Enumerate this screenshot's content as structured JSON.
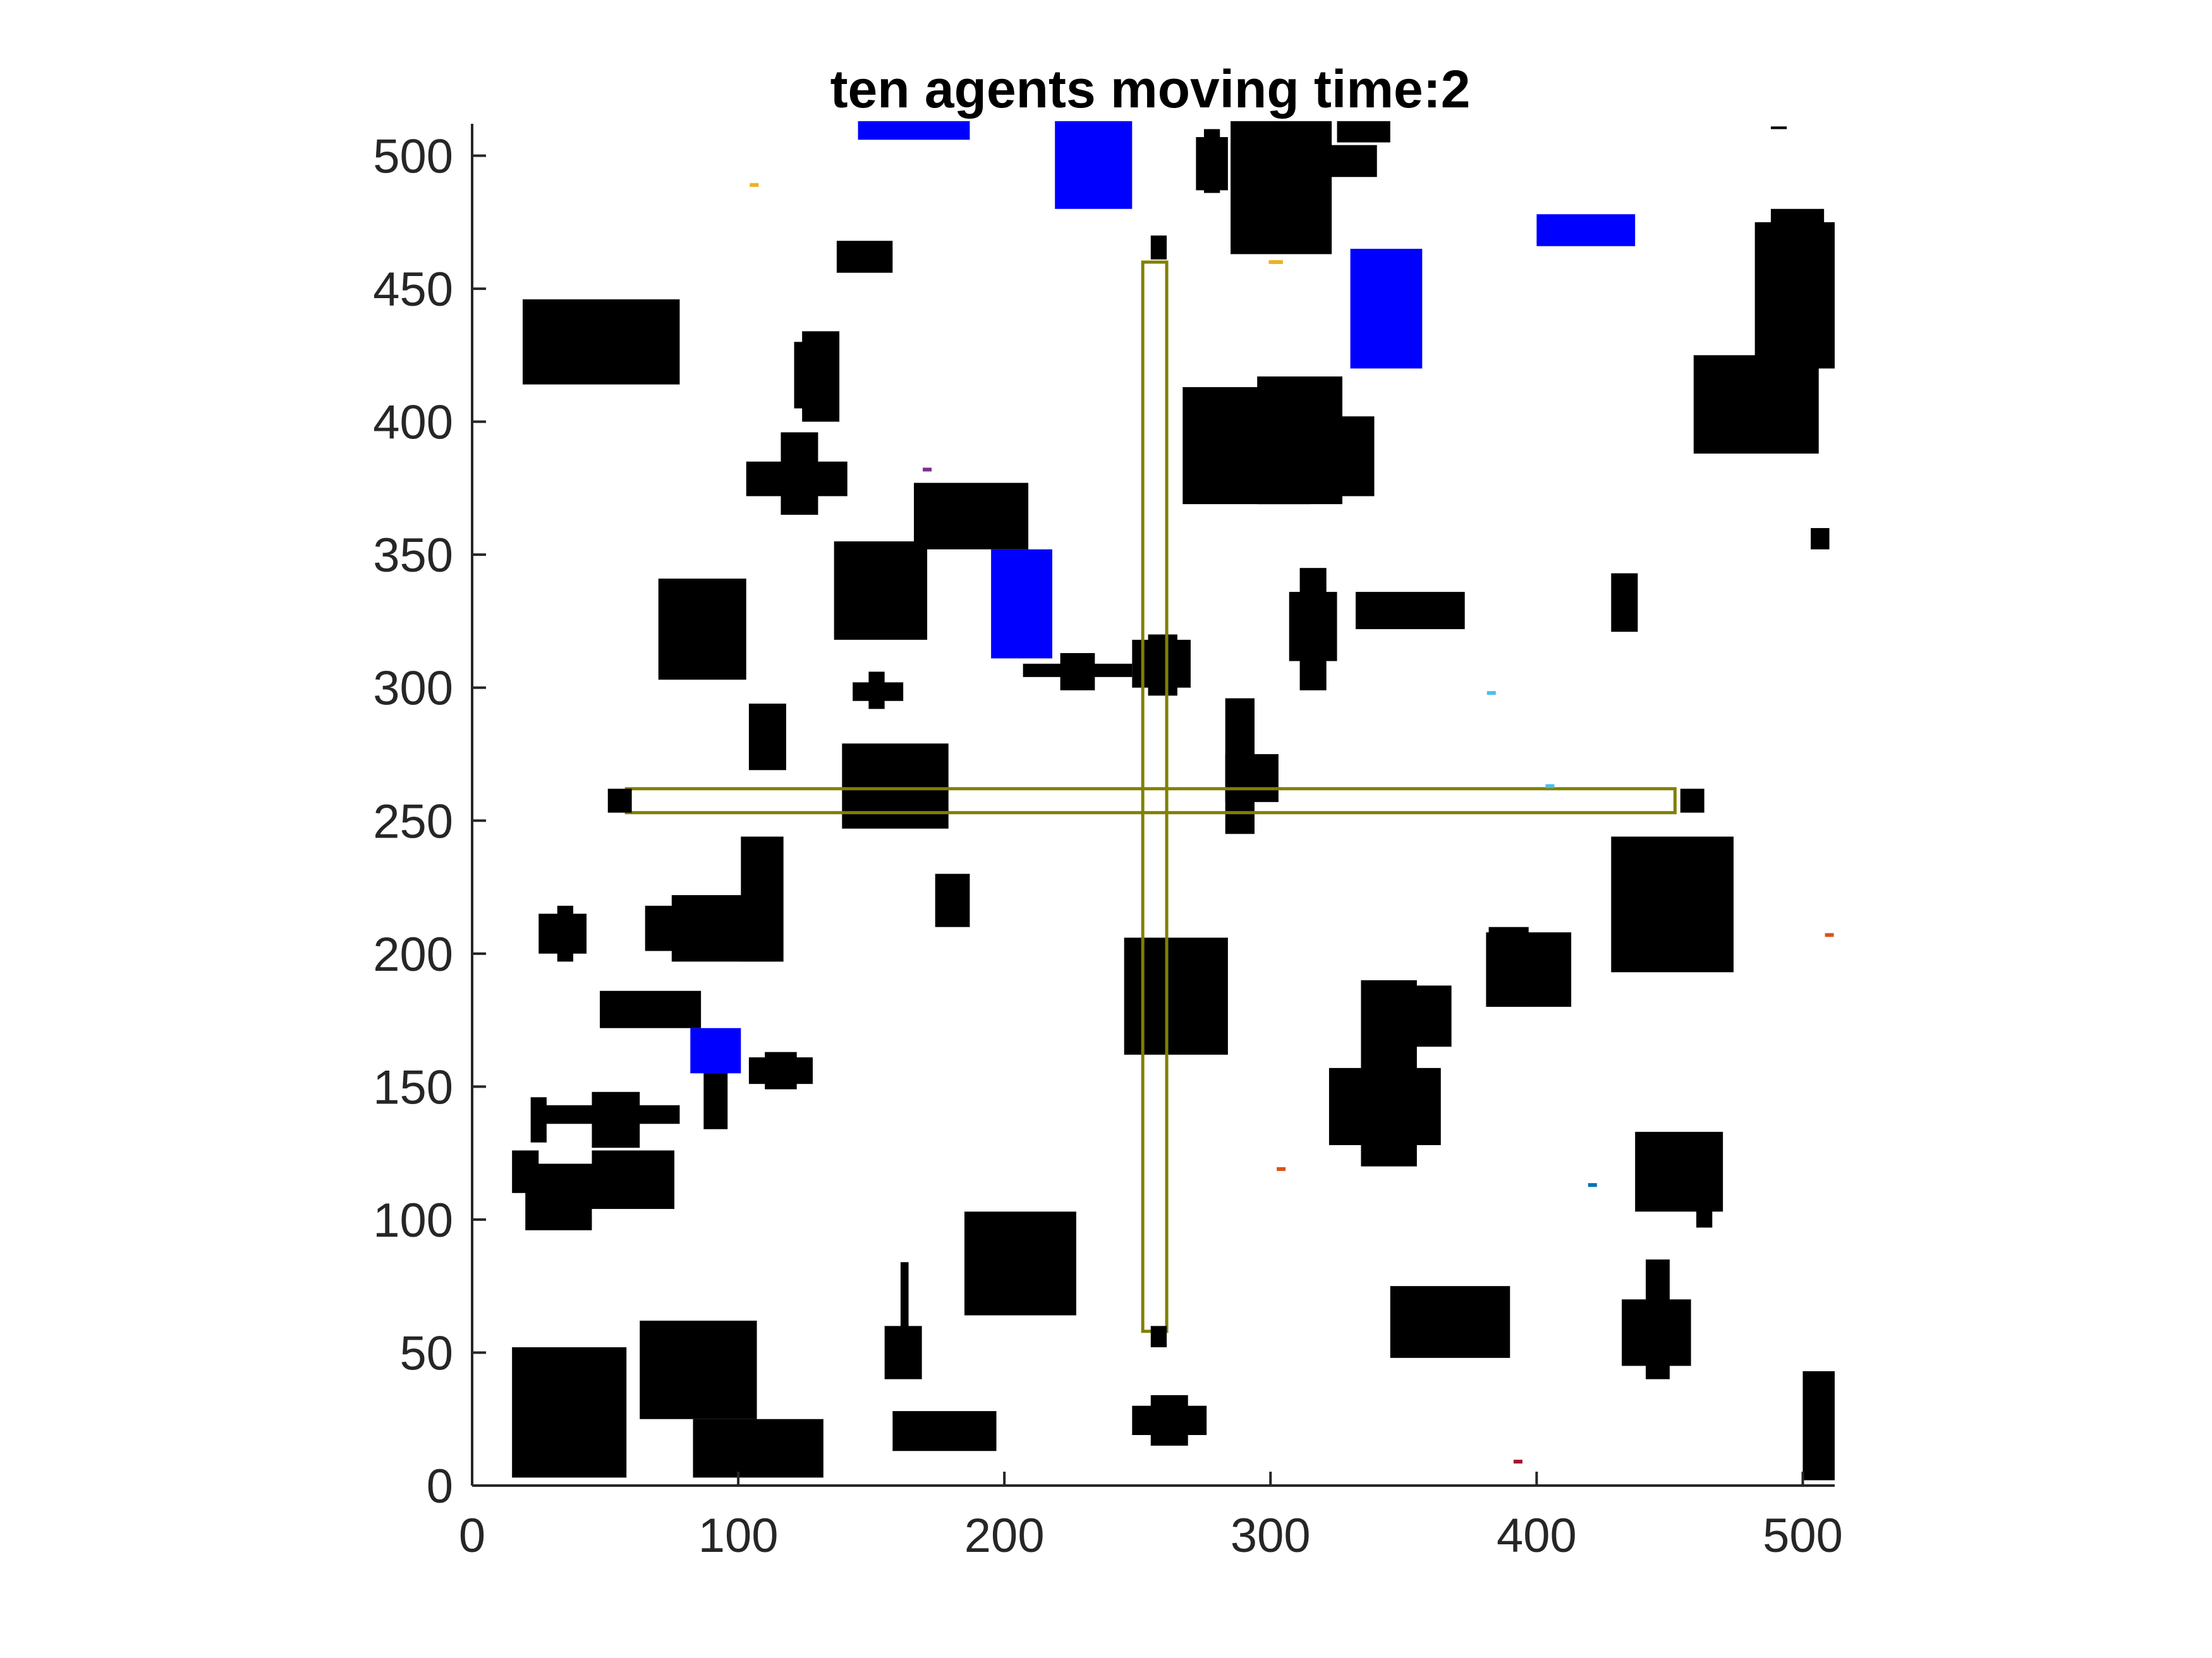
{
  "chart_data": {
    "type": "scatter",
    "title": "ten agents moving time:2",
    "xlabel": "",
    "ylabel": "",
    "xlim": [
      0,
      512
    ],
    "ylim": [
      0,
      512
    ],
    "xticks": [
      "0",
      "100",
      "200",
      "300",
      "400",
      "500"
    ],
    "yticks": [
      "0",
      "50",
      "100",
      "150",
      "200",
      "250",
      "300",
      "350",
      "400",
      "450",
      "500"
    ],
    "grid": false,
    "legend": "none",
    "colors": {
      "obstacle": "#000000",
      "blue_region": "#0000ff",
      "corridor": "#808000",
      "axis": "#262626"
    },
    "obstacles": [
      [
        15,
        3,
        58,
        52
      ],
      [
        63,
        25,
        107,
        62
      ],
      [
        83,
        3,
        132,
        25
      ],
      [
        158,
        13,
        197,
        28
      ],
      [
        248,
        19,
        276,
        30
      ],
      [
        255,
        15,
        269,
        34
      ],
      [
        345,
        48,
        390,
        75
      ],
      [
        432,
        45,
        458,
        70
      ],
      [
        441,
        40,
        450,
        85
      ],
      [
        500,
        2,
        512,
        43
      ],
      [
        155,
        40,
        169,
        60
      ],
      [
        161,
        41,
        164,
        84
      ],
      [
        185,
        64,
        227,
        103
      ],
      [
        20,
        96,
        45,
        121
      ],
      [
        45,
        104,
        76,
        126
      ],
      [
        15,
        110,
        25,
        126
      ],
      [
        27,
        136,
        78,
        143
      ],
      [
        45,
        127,
        63,
        148
      ],
      [
        22,
        129,
        28,
        146
      ],
      [
        87,
        134,
        96,
        169
      ],
      [
        104,
        151,
        128,
        161
      ],
      [
        110,
        149,
        122,
        163
      ],
      [
        48,
        172,
        86,
        186
      ],
      [
        245,
        162,
        284,
        206
      ],
      [
        334,
        120,
        355,
        190
      ],
      [
        322,
        128,
        364,
        157
      ],
      [
        343,
        165,
        368,
        188
      ],
      [
        381,
        180,
        413,
        208
      ],
      [
        382,
        180,
        397,
        210
      ],
      [
        428,
        193,
        474,
        244
      ],
      [
        437,
        133,
        470,
        103
      ],
      [
        460,
        97,
        466,
        125
      ],
      [
        25,
        200,
        43,
        215
      ],
      [
        32,
        197,
        38,
        218
      ],
      [
        65,
        201,
        98,
        218
      ],
      [
        75,
        197,
        116,
        222
      ],
      [
        101,
        197,
        117,
        244
      ],
      [
        174,
        210,
        187,
        230
      ],
      [
        70,
        303,
        103,
        341
      ],
      [
        104,
        269,
        118,
        294
      ],
      [
        139,
        247,
        179,
        279
      ],
      [
        143,
        295,
        162,
        302
      ],
      [
        149,
        292,
        155,
        306
      ],
      [
        19,
        414,
        78,
        446
      ],
      [
        103,
        385,
        141,
        372
      ],
      [
        116,
        365,
        130,
        396
      ],
      [
        124,
        400,
        138,
        434
      ],
      [
        121,
        405,
        134,
        430
      ],
      [
        137,
        456,
        158,
        468
      ],
      [
        136,
        318,
        171,
        355
      ],
      [
        166,
        352,
        209,
        377
      ],
      [
        207,
        304,
        248,
        309
      ],
      [
        221,
        299,
        234,
        313
      ],
      [
        248,
        300,
        270,
        318
      ],
      [
        254,
        297,
        265,
        320
      ],
      [
        283,
        245,
        294,
        296
      ],
      [
        283,
        257,
        303,
        275
      ],
      [
        311,
        299,
        321,
        345
      ],
      [
        307,
        310,
        325,
        336
      ],
      [
        332,
        322,
        373,
        336
      ],
      [
        428,
        321,
        438,
        343
      ],
      [
        267,
        369,
        315,
        413
      ],
      [
        295,
        417,
        327,
        369
      ],
      [
        320,
        402,
        339,
        372
      ],
      [
        459,
        388,
        506,
        425
      ],
      [
        482,
        420,
        512,
        475
      ],
      [
        488,
        480,
        508,
        462
      ],
      [
        488,
        510,
        494,
        511
      ],
      [
        503,
        352,
        510,
        360
      ],
      [
        272,
        487,
        284,
        507
      ],
      [
        275,
        486,
        281,
        510
      ],
      [
        285,
        463,
        323,
        513
      ],
      [
        298,
        492,
        340,
        504
      ],
      [
        325,
        505,
        345,
        513
      ]
    ],
    "blue_regions": [
      [
        145,
        506,
        187,
        513
      ],
      [
        219,
        480,
        248,
        513
      ],
      [
        330,
        420,
        357,
        465
      ],
      [
        400,
        466,
        437,
        478
      ],
      [
        195,
        311,
        218,
        352
      ],
      [
        82,
        155,
        101,
        172
      ]
    ],
    "corridors": {
      "vertical": {
        "x": [
          252,
          261
        ],
        "y": [
          58,
          460
        ]
      },
      "horizontal": {
        "x": [
          58,
          452
        ],
        "y": [
          253,
          262
        ]
      },
      "end_caps": [
        [
          255,
          461,
          261,
          470
        ],
        [
          255,
          52,
          261,
          60
        ],
        [
          51,
          253,
          60,
          262
        ],
        [
          454,
          253,
          463,
          262
        ]
      ]
    },
    "agents": [
      {
        "x": 106,
        "y": 489,
        "color": "#edb120"
      },
      {
        "x": 301,
        "y": 460,
        "color": "#edb120"
      },
      {
        "x": 171,
        "y": 382,
        "color": "#7e2f8e"
      },
      {
        "x": 383,
        "y": 298,
        "color": "#4dbeee"
      },
      {
        "x": 405,
        "y": 263,
        "color": "#4dbeee"
      },
      {
        "x": 510,
        "y": 207,
        "color": "#d95319"
      },
      {
        "x": 304,
        "y": 119,
        "color": "#d95319"
      },
      {
        "x": 421,
        "y": 113,
        "color": "#0072bd"
      },
      {
        "x": 393,
        "y": 9,
        "color": "#a2142f"
      },
      {
        "x": 303,
        "y": 460,
        "color": "#edb120"
      }
    ]
  }
}
